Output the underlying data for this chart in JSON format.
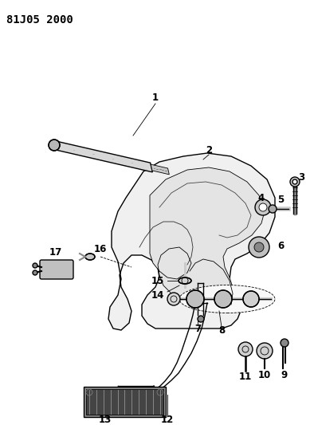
{
  "title": "81J05 2000",
  "bg_color": "#ffffff",
  "line_color": "#000000",
  "label_color": "#000000",
  "title_fontsize": 10,
  "label_fontsize": 8.5,
  "figw": 3.94,
  "figh": 5.33,
  "dpi": 100,
  "xlim": [
    0,
    394
  ],
  "ylim": [
    0,
    533
  ]
}
